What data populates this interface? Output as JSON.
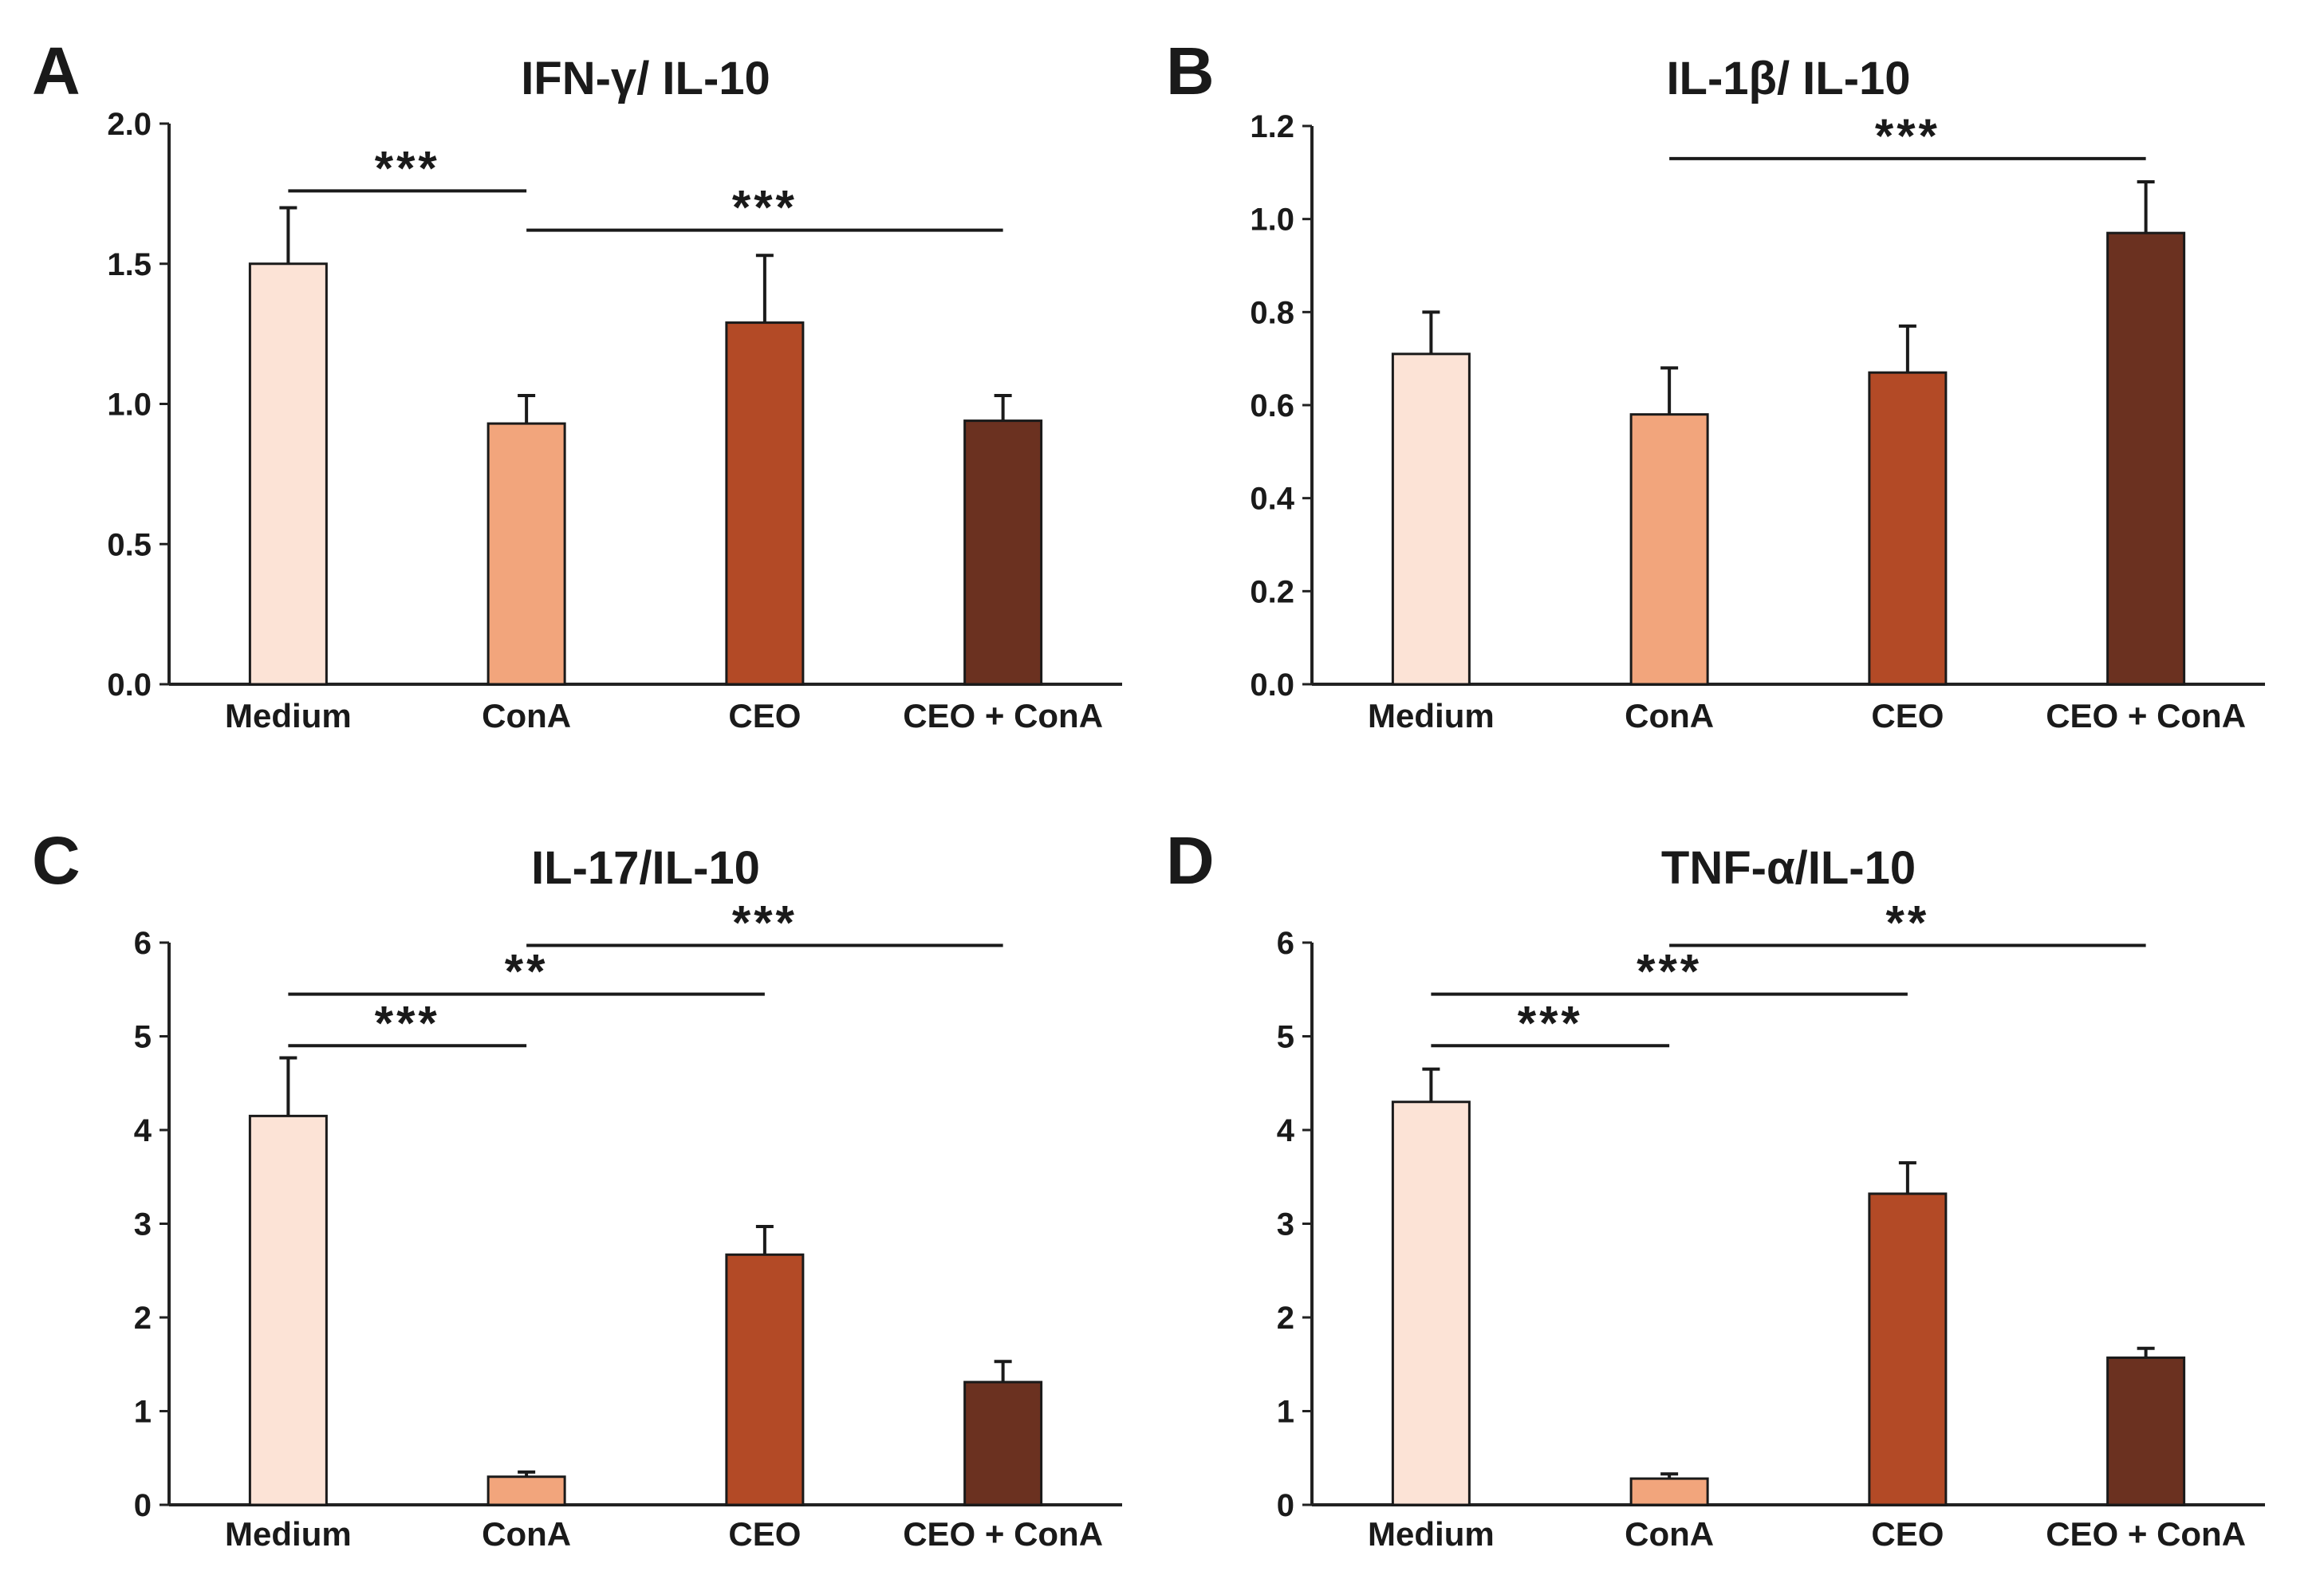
{
  "chart_data": [
    {
      "type": "bar",
      "panel": "A",
      "title": "IFN-γ/ IL-10",
      "categories": [
        "Medium",
        "ConA",
        "CEO",
        "CEO + ConA"
      ],
      "values": [
        1.5,
        0.93,
        1.29,
        0.94
      ],
      "errors": [
        0.2,
        0.1,
        0.24,
        0.09
      ],
      "yticks": [
        "0.0",
        "0.5",
        "1.0",
        "1.5",
        "2.0"
      ],
      "ylim": [
        0,
        2.0
      ],
      "colors": [
        "#fce3d6",
        "#f2a57c",
        "#b34a26",
        "#6b3120"
      ],
      "significance": [
        {
          "from": 0,
          "to": 1,
          "y": 1.76,
          "label": "***"
        },
        {
          "from": 1,
          "to": 3,
          "y": 1.62,
          "label": "***"
        }
      ]
    },
    {
      "type": "bar",
      "panel": "B",
      "title": "IL-1β/ IL-10",
      "categories": [
        "Medium",
        "ConA",
        "CEO",
        "CEO + ConA"
      ],
      "values": [
        0.71,
        0.58,
        0.67,
        0.97
      ],
      "errors": [
        0.09,
        0.1,
        0.1,
        0.11
      ],
      "yticks": [
        "0.0",
        "0.2",
        "0.4",
        "0.6",
        "0.8",
        "1.0",
        "1.2"
      ],
      "ylim": [
        0,
        1.2
      ],
      "colors": [
        "#fce3d6",
        "#f2a57c",
        "#b34a26",
        "#6b3120"
      ],
      "significance": [
        {
          "from": 1,
          "to": 3,
          "y": 1.13,
          "label": "***"
        }
      ]
    },
    {
      "type": "bar",
      "panel": "C",
      "title": "IL-17/IL-10",
      "categories": [
        "Medium",
        "ConA",
        "CEO",
        "CEO + ConA"
      ],
      "values": [
        4.15,
        0.3,
        2.67,
        1.31
      ],
      "errors": [
        0.62,
        0.05,
        0.3,
        0.22
      ],
      "yticks": [
        "0",
        "1",
        "2",
        "3",
        "4",
        "5",
        "6"
      ],
      "ylim": [
        0,
        6
      ],
      "colors": [
        "#fce3d6",
        "#f2a57c",
        "#b34a26",
        "#6b3120"
      ],
      "significance": [
        {
          "from": 0,
          "to": 1,
          "y": 4.9,
          "label": "***"
        },
        {
          "from": 0,
          "to": 2,
          "y": 5.45,
          "label": "**"
        },
        {
          "from": 1,
          "to": 3,
          "y": 5.97,
          "label": "***"
        }
      ]
    },
    {
      "type": "bar",
      "panel": "D",
      "title": "TNF-α/IL-10",
      "categories": [
        "Medium",
        "ConA",
        "CEO",
        "CEO + ConA"
      ],
      "values": [
        4.3,
        0.28,
        3.32,
        1.57
      ],
      "errors": [
        0.35,
        0.05,
        0.33,
        0.1
      ],
      "yticks": [
        "0",
        "1",
        "2",
        "3",
        "4",
        "5",
        "6"
      ],
      "ylim": [
        0,
        6
      ],
      "colors": [
        "#fce3d6",
        "#f2a57c",
        "#b34a26",
        "#6b3120"
      ],
      "significance": [
        {
          "from": 0,
          "to": 1,
          "y": 4.9,
          "label": "***"
        },
        {
          "from": 0,
          "to": 2,
          "y": 5.45,
          "label": "***"
        },
        {
          "from": 1,
          "to": 3,
          "y": 5.97,
          "label": "**"
        }
      ]
    }
  ]
}
